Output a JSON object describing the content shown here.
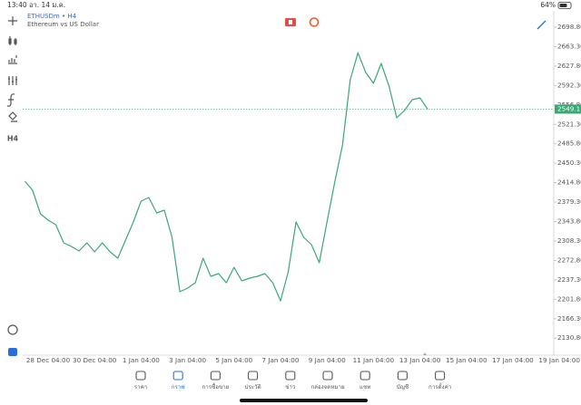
{
  "status_bar": {
    "time": "13:40",
    "date": "อา. 14 ม.ค.",
    "battery": "64%"
  },
  "chart_data": {
    "type": "line",
    "symbol": "ETHUSDm • H4",
    "description": "Ethereum vs US Dollar",
    "color": "#3aa876",
    "categories": [
      null,
      null,
      null,
      "28 Dec 04:00",
      null,
      null,
      null,
      null,
      null,
      "30 Dec 04:00",
      null,
      null,
      null,
      null,
      null,
      "1 Jan 04:00",
      null,
      null,
      null,
      null,
      null,
      "3 Jan 04:00",
      null,
      null,
      null,
      null,
      null,
      "5 Jan 04:00",
      null,
      null,
      null,
      null,
      null,
      "7 Jan 04:00",
      null,
      null,
      null,
      null,
      null,
      "9 Jan 04:00",
      null,
      null,
      null,
      null,
      null,
      "11 Jan 04:00",
      null,
      null,
      null,
      null,
      null,
      "13 Jan 04:00",
      null,
      null,
      null,
      null,
      null,
      "15 Jan 04:00",
      null,
      null,
      null,
      null,
      null,
      "17 Jan 04:00",
      null,
      null,
      null,
      null,
      null,
      "19 Jan 04:00"
    ],
    "values": [
      2417.5,
      2400.9,
      2357.9,
      2346.3,
      2338,
      2304.9,
      2298.3,
      2290,
      2304.9,
      2288.4,
      2305,
      2288.4,
      2276.8,
      2309.9,
      2343,
      2381,
      2387.7,
      2359.5,
      2364.5,
      2314.8,
      2215.5,
      2222.2,
      2232,
      2276.8,
      2243.7,
      2248.6,
      2232,
      2260.2,
      2235.4,
      2240.4,
      2243.7,
      2248.6,
      2232,
      2199,
      2252,
      2343,
      2314.8,
      2301.6,
      2268.5,
      2343,
      2415.7,
      2483.6,
      2602.8,
      2652,
      2616,
      2596.2,
      2632.6,
      2591.2,
      2533.3,
      2546.5,
      2566.4,
      2569.7,
      2549.11,
      null,
      null,
      null,
      null,
      null,
      null,
      null,
      null,
      null,
      null,
      null,
      null,
      null,
      null,
      null,
      null,
      null
    ],
    "last_price": 2549.11,
    "ylim": [
      2099.7,
      2728.6
    ],
    "yticks": [
      {
        "value": 2698.8,
        "label": "2698.80"
      },
      {
        "value": 2663.3,
        "label": "2663.30"
      },
      {
        "value": 2627.8,
        "label": "2627.80"
      },
      {
        "value": 2592.3,
        "label": "2592.30"
      },
      {
        "value": 2556.8,
        "label": "2556.80"
      },
      {
        "value": 2521.3,
        "label": "2521.30"
      },
      {
        "value": 2485.8,
        "label": "2485.80"
      },
      {
        "value": 2450.3,
        "label": "2450.30"
      },
      {
        "value": 2414.8,
        "label": "2414.80"
      },
      {
        "value": 2379.3,
        "label": "2379.30"
      },
      {
        "value": 2343.8,
        "label": "2343.80"
      },
      {
        "value": 2308.3,
        "label": "2308.30"
      },
      {
        "value": 2272.8,
        "label": "2272.80"
      },
      {
        "value": 2237.3,
        "label": "2237.30"
      },
      {
        "value": 2201.8,
        "label": "2201.80"
      },
      {
        "value": 2166.3,
        "label": "2166.30"
      },
      {
        "value": 2130.8,
        "label": "2130.80"
      }
    ],
    "grid": false
  },
  "nav": {
    "items": [
      "ราคา",
      "กราฟ",
      "การซื้อขาย",
      "ประวัติ",
      "ข่าว",
      "กล่องจดหมาย",
      "แชท",
      "บัญชี",
      "การตั้งค่า"
    ],
    "active": 1
  }
}
